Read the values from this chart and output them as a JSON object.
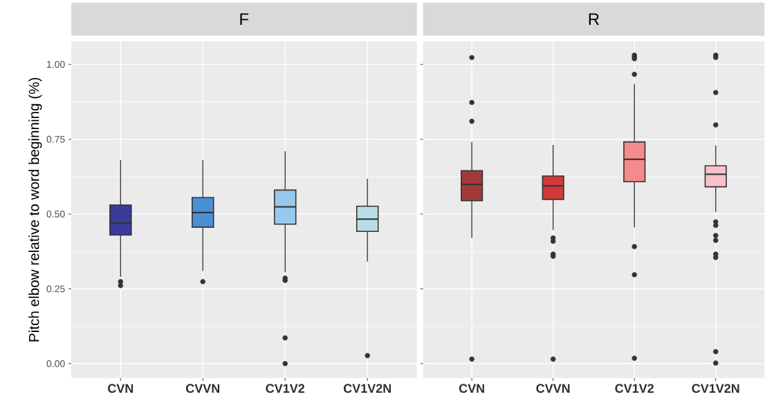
{
  "chart_data": [
    {
      "type": "box",
      "title": "F",
      "ylabel": "Pitch elbow relative to word beginning (%)",
      "categories": [
        "CVN",
        "CVVN",
        "CV1V2",
        "CV1V2N"
      ],
      "colors": [
        "#3a3a9a",
        "#4a90d4",
        "#98c8ec",
        "#b8dde6"
      ],
      "boxes": [
        {
          "low": 0.29,
          "q1": 0.43,
          "median": 0.47,
          "q3": 0.53,
          "high": 0.68,
          "outliers": [
            0.274,
            0.261
          ]
        },
        {
          "low": 0.31,
          "q1": 0.456,
          "median": 0.505,
          "q3": 0.555,
          "high": 0.68,
          "outliers": [
            0.274
          ]
        },
        {
          "low": 0.305,
          "q1": 0.466,
          "median": 0.524,
          "q3": 0.58,
          "high": 0.71,
          "outliers": [
            0.286,
            0.278,
            0.086,
            0.0
          ]
        },
        {
          "low": 0.341,
          "q1": 0.442,
          "median": 0.483,
          "q3": 0.526,
          "high": 0.618,
          "outliers": [
            0.027
          ]
        }
      ],
      "ylim": [
        -0.048,
        1.077
      ],
      "yticks": [
        {
          "value": 0,
          "label": "0.00"
        },
        {
          "value": 0.25,
          "label": "0.25"
        },
        {
          "value": 0.5,
          "label": "0.50"
        },
        {
          "value": 0.75,
          "label": "0.75"
        },
        {
          "value": 1,
          "label": "1.00"
        }
      ],
      "grid": true
    },
    {
      "type": "box",
      "title": "R",
      "categories": [
        "CVN",
        "CVVN",
        "CV1V2",
        "CV1V2N"
      ],
      "colors": [
        "#a33a3a",
        "#d23a3a",
        "#f58a8a",
        "#f8c0c8"
      ],
      "boxes": [
        {
          "low": 0.42,
          "q1": 0.545,
          "median": 0.599,
          "q3": 0.645,
          "high": 0.741,
          "outliers": [
            1.023,
            0.873,
            0.81,
            0.015
          ]
        },
        {
          "low": 0.447,
          "q1": 0.549,
          "median": 0.594,
          "q3": 0.627,
          "high": 0.731,
          "outliers": [
            0.42,
            0.409,
            0.366,
            0.359,
            0.015
          ]
        },
        {
          "low": 0.455,
          "q1": 0.608,
          "median": 0.683,
          "q3": 0.741,
          "high": 0.935,
          "outliers": [
            1.031,
            1.025,
            1.019,
            0.967,
            0.391,
            0.297,
            0.018
          ]
        },
        {
          "low": 0.507,
          "q1": 0.591,
          "median": 0.633,
          "q3": 0.661,
          "high": 0.729,
          "outliers": [
            1.031,
            1.023,
            0.906,
            0.798,
            0.474,
            0.462,
            0.428,
            0.412,
            0.366,
            0.355,
            0.04,
            0.002
          ]
        }
      ],
      "ylim": [
        -0.048,
        1.077
      ],
      "yticks": [
        {
          "value": 0,
          "label": null
        },
        {
          "value": 0.25,
          "label": null
        },
        {
          "value": 0.5,
          "label": null
        },
        {
          "value": 0.75,
          "label": null
        },
        {
          "value": 1,
          "label": null
        }
      ],
      "grid": true,
      "tick_labels": "x"
    }
  ]
}
